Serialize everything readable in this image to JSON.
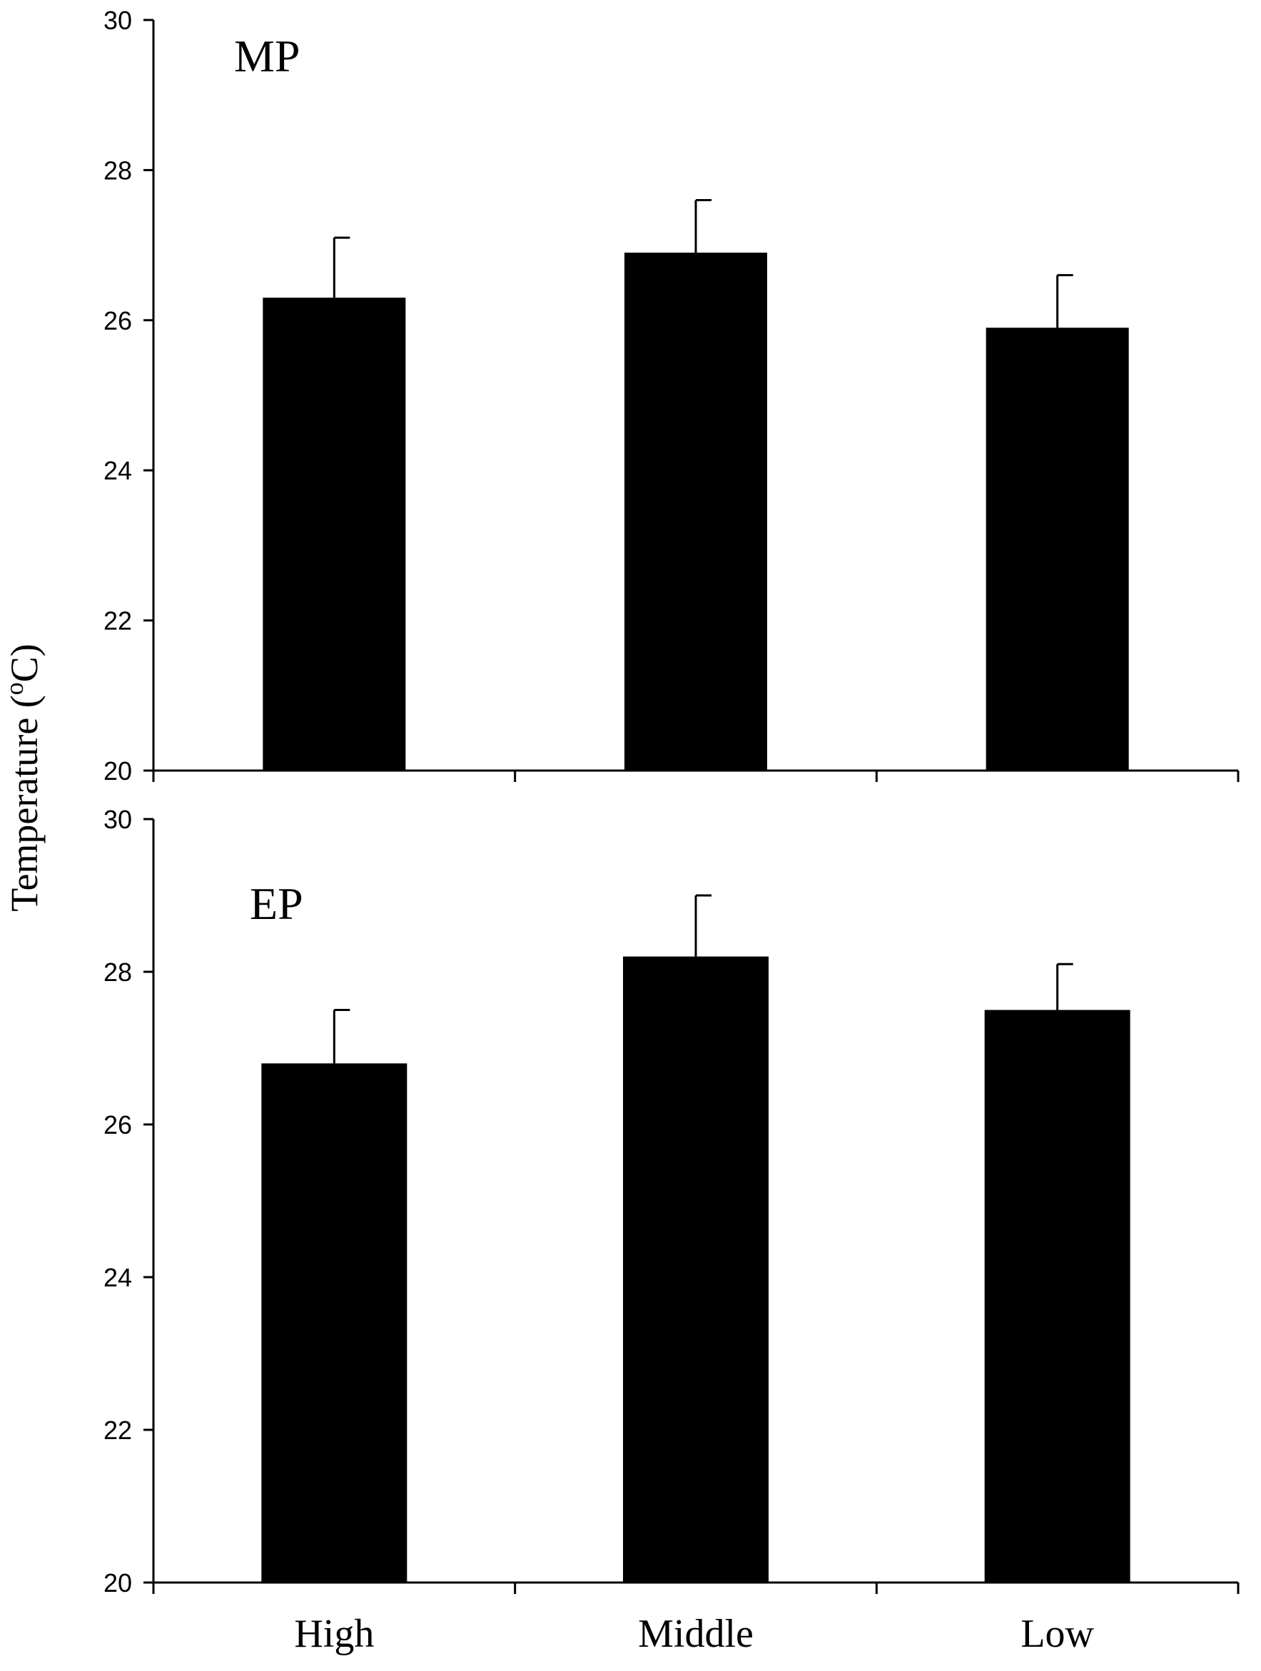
{
  "chart_data": {
    "type": "bar",
    "ylabel": "Temperature (",
    "ylabel_sup": "o",
    "ylabel_end": "C)",
    "categories": [
      "High",
      "Middle",
      "Low"
    ],
    "ylim": [
      20,
      30
    ],
    "yticks": [
      20,
      22,
      24,
      26,
      28,
      30
    ],
    "bar_color": "#000000",
    "grid": false,
    "panels": [
      {
        "label": "MP",
        "values": [
          26.3,
          26.9,
          25.9
        ],
        "errors": [
          0.8,
          0.7,
          0.7
        ]
      },
      {
        "label": "EP",
        "values": [
          26.8,
          28.2,
          27.5
        ],
        "errors": [
          0.7,
          0.8,
          0.6
        ]
      }
    ]
  }
}
